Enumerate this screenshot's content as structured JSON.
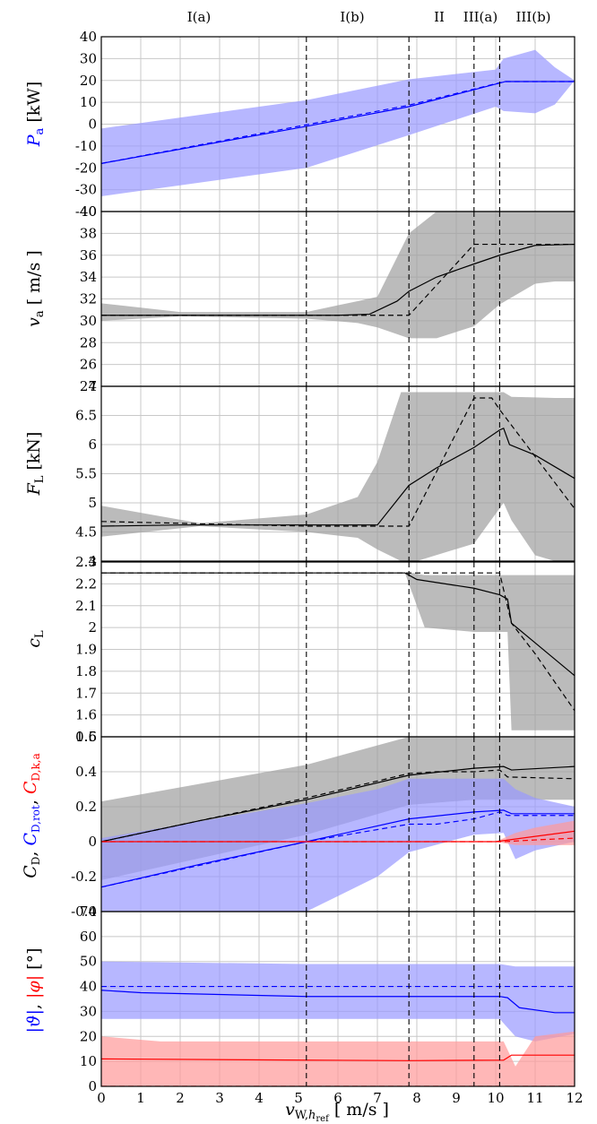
{
  "regions": [
    "I(a)",
    "I(b)",
    "II",
    "III(a)",
    "III(b)"
  ],
  "region_boundaries": [
    5.2,
    7.8,
    9.45,
    10.1
  ],
  "x_axis": {
    "ticks": [
      0,
      1,
      2,
      3,
      4,
      5,
      6,
      7,
      8,
      9,
      10,
      11,
      12
    ],
    "label": "v_{w,h_ref} [m/s]",
    "range": [
      0,
      12
    ]
  },
  "colors": {
    "black_band": "#9e9e9e",
    "blue": "#0000ff",
    "blue_band": "#9999ff",
    "red": "#ff0000",
    "red_band": "#ff9999",
    "grid": "#c8c8c8"
  },
  "chart_data": [
    {
      "type": "line",
      "ylabel": "P_a [kW]",
      "ylim": [
        -40,
        40
      ],
      "yticks": [
        -40,
        -30,
        -20,
        -10,
        0,
        10,
        20,
        30,
        40
      ],
      "series": [
        {
          "color": "blue",
          "style": "solid",
          "x": [
            0,
            5.2,
            7.8,
            10.25,
            12
          ],
          "y": [
            -18,
            -1,
            8,
            19.5,
            19.5
          ]
        },
        {
          "color": "blue",
          "style": "dashed",
          "x": [
            0,
            5.2,
            7.8,
            10.0,
            10.25,
            12
          ],
          "y": [
            -18,
            -0.3,
            8.7,
            18.5,
            19.5,
            19.5
          ]
        }
      ],
      "bands": [
        {
          "color": "blue_band",
          "x": [
            0,
            5.2,
            7.8,
            10.0,
            10.2,
            11.0,
            11.5,
            12
          ],
          "upper": [
            -2,
            11,
            20.5,
            25,
            30,
            34,
            26,
            20
          ],
          "lower": [
            -33,
            -20,
            -5,
            8,
            6,
            5,
            9,
            20
          ]
        }
      ]
    },
    {
      "type": "line",
      "ylabel": "v_a [m/s]",
      "ylim": [
        24,
        40
      ],
      "yticks": [
        24,
        26,
        28,
        30,
        32,
        34,
        36,
        38,
        40
      ],
      "series": [
        {
          "color": "black",
          "style": "solid",
          "x": [
            0,
            2,
            5.2,
            6,
            6.8,
            7.5,
            7.8,
            8.5,
            9.45,
            10.1,
            11,
            12
          ],
          "y": [
            30.5,
            30.5,
            30.5,
            30.5,
            30.6,
            31.8,
            32.7,
            34,
            35.2,
            36,
            36.9,
            37
          ]
        },
        {
          "color": "black",
          "style": "dashed",
          "x": [
            0,
            5.2,
            7.8,
            9.45,
            10.1,
            12
          ],
          "y": [
            30.5,
            30.5,
            30.5,
            37,
            37,
            37
          ]
        }
      ],
      "bands": [
        {
          "color": "black_band",
          "x": [
            0,
            2,
            5.2,
            6.5,
            7.0,
            7.8,
            8.5,
            9.45,
            10.1,
            11,
            11.5,
            12
          ],
          "upper": [
            31.6,
            30.8,
            30.8,
            31.8,
            32.2,
            38,
            40,
            40,
            40,
            40,
            40,
            40
          ],
          "lower": [
            30,
            30.4,
            30.2,
            29.8,
            29.4,
            28.4,
            28.4,
            29.5,
            31.5,
            33.4,
            33.6,
            33.6
          ]
        }
      ]
    },
    {
      "type": "line",
      "ylabel": "F_L [kN]",
      "ylim": [
        4,
        7
      ],
      "yticks": [
        4,
        4.5,
        5,
        5.5,
        6,
        6.5,
        7
      ],
      "series": [
        {
          "color": "black",
          "style": "solid",
          "x": [
            0,
            2,
            5.2,
            6.5,
            7.0,
            7.8,
            8.5,
            9.45,
            10.1,
            10.2,
            10.35,
            11,
            12
          ],
          "y": [
            4.6,
            4.62,
            4.62,
            4.62,
            4.62,
            5.3,
            5.6,
            5.95,
            6.25,
            6.28,
            6.0,
            5.82,
            5.42
          ]
        },
        {
          "color": "black",
          "style": "dashed",
          "x": [
            0,
            5.2,
            7.8,
            9.45,
            9.9,
            10.1,
            12
          ],
          "y": [
            4.68,
            4.6,
            4.6,
            6.8,
            6.8,
            6.6,
            4.9
          ]
        }
      ],
      "bands": [
        {
          "color": "black_band",
          "x": [
            0,
            2.5,
            5.2,
            6.5,
            7.0,
            7.6,
            8.0,
            9.45,
            10.2,
            10.4,
            11.0,
            11.5,
            12
          ],
          "upper": [
            4.95,
            4.65,
            4.8,
            5.1,
            5.7,
            6.9,
            6.9,
            6.9,
            6.9,
            6.82,
            6.81,
            6.8,
            6.8
          ],
          "lower": [
            4.42,
            4.6,
            4.5,
            4.4,
            4.2,
            4.0,
            4.0,
            4.3,
            5.0,
            4.7,
            4.1,
            4.0,
            4.0
          ]
        }
      ]
    },
    {
      "type": "line",
      "ylabel": "c_L",
      "ylim": [
        1.5,
        2.3
      ],
      "yticks": [
        1.5,
        1.6,
        1.7,
        1.8,
        1.9,
        2,
        2.1,
        2.2,
        2.3
      ],
      "series": [
        {
          "color": "black",
          "style": "solid",
          "x": [
            0,
            7.7,
            8.0,
            9.45,
            10.1,
            10.3,
            10.4,
            11,
            12
          ],
          "y": [
            2.25,
            2.25,
            2.22,
            2.18,
            2.15,
            2.13,
            2.02,
            1.93,
            1.78
          ]
        },
        {
          "color": "black",
          "style": "dashed",
          "x": [
            0,
            10.1,
            10.4,
            11,
            12
          ],
          "y": [
            2.25,
            2.25,
            2.02,
            1.88,
            1.62
          ]
        }
      ],
      "bands": [
        {
          "color": "black_band",
          "x": [
            0,
            7.7,
            7.9,
            8.2,
            9.45,
            10.3,
            10.4,
            10.5,
            11,
            12
          ],
          "upper": [
            2.25,
            2.25,
            2.25,
            2.24,
            2.24,
            2.24,
            2.24,
            2.24,
            2.24,
            2.24
          ],
          "lower": [
            2.25,
            2.25,
            2.15,
            2.0,
            1.98,
            1.98,
            1.53,
            1.53,
            1.53,
            1.53
          ]
        }
      ]
    },
    {
      "type": "line",
      "ylabel": "C_D, C_D,rot, C_D,k,a",
      "ylim": [
        -0.4,
        0.6
      ],
      "yticks": [
        -0.4,
        -0.2,
        0,
        0.2,
        0.4,
        0.6
      ],
      "series": [
        {
          "color": "black",
          "style": "solid",
          "x": [
            0,
            2.5,
            5.2,
            7.8,
            9.45,
            10.2,
            10.4,
            12
          ],
          "y": [
            0,
            0.12,
            0.24,
            0.38,
            0.42,
            0.43,
            0.41,
            0.43
          ]
        },
        {
          "color": "black",
          "style": "dashed",
          "x": [
            0,
            5.2,
            7.8,
            8.5,
            9.45,
            10.1,
            10.3,
            12
          ],
          "y": [
            0,
            0.25,
            0.39,
            0.4,
            0.4,
            0.41,
            0.37,
            0.36
          ]
        },
        {
          "color": "blue",
          "style": "solid",
          "x": [
            0,
            2.5,
            5.2,
            7.8,
            9.45,
            10.2,
            10.4,
            12
          ],
          "y": [
            -0.26,
            -0.13,
            0,
            0.13,
            0.17,
            0.18,
            0.16,
            0.16
          ]
        },
        {
          "color": "blue",
          "style": "dashed",
          "x": [
            0,
            5.2,
            7.8,
            8.5,
            9.45,
            10.1,
            10.3,
            12
          ],
          "y": [
            -0.26,
            0,
            0.1,
            0.1,
            0.13,
            0.17,
            0.15,
            0.15
          ]
        },
        {
          "color": "red",
          "style": "solid",
          "x": [
            0,
            10.0,
            11,
            12
          ],
          "y": [
            0,
            0,
            0.03,
            0.06
          ]
        },
        {
          "color": "red",
          "style": "dashed",
          "x": [
            0,
            10.2,
            11,
            12
          ],
          "y": [
            0,
            0,
            0.01,
            0.02
          ]
        }
      ],
      "bands": [
        {
          "color": "black_band",
          "x": [
            0,
            5.2,
            7.8,
            9.45,
            10.2,
            11,
            12
          ],
          "upper": [
            0.23,
            0.44,
            0.6,
            0.6,
            0.6,
            0.6,
            0.6
          ],
          "lower": [
            -0.22,
            0.04,
            0.21,
            0.24,
            0.24,
            0.24,
            0.24
          ]
        },
        {
          "color": "blue_band",
          "x": [
            0,
            5.2,
            7.0,
            7.8,
            9.45,
            10.2,
            10.5,
            11,
            12
          ],
          "upper": [
            0.02,
            0.22,
            0.3,
            0.36,
            0.36,
            0.36,
            0.3,
            0.25,
            0.2
          ],
          "lower": [
            -0.4,
            -0.4,
            -0.2,
            -0.06,
            0.04,
            0.05,
            -0.1,
            -0.05,
            0
          ]
        },
        {
          "color": "red_band",
          "x": [
            0,
            10.0,
            10.5,
            11,
            12
          ],
          "upper": [
            0,
            0,
            0.05,
            0.08,
            0.12
          ],
          "lower": [
            0,
            0,
            -0.02,
            -0.02,
            -0.02
          ]
        }
      ]
    },
    {
      "type": "line",
      "ylabel": "|θ|, |φ| [°]",
      "ylim": [
        0,
        70
      ],
      "yticks": [
        0,
        10,
        20,
        30,
        40,
        50,
        60,
        70
      ],
      "series": [
        {
          "color": "blue",
          "style": "solid",
          "x": [
            0,
            1,
            5.2,
            7.8,
            10.1,
            10.3,
            10.6,
            11.5,
            12
          ],
          "y": [
            38.5,
            37.5,
            36,
            36,
            36,
            35.5,
            31.5,
            29.5,
            29.5
          ]
        },
        {
          "color": "blue",
          "style": "dashed",
          "x": [
            0,
            12
          ],
          "y": [
            40,
            40
          ]
        },
        {
          "color": "red",
          "style": "solid",
          "x": [
            0,
            5.2,
            7.8,
            10.2,
            10.4,
            12
          ],
          "y": [
            11,
            10.5,
            10.3,
            10.5,
            12.5,
            12.5
          ]
        },
        {
          "color": "red",
          "style": "dashed",
          "x": [
            0,
            12
          ],
          "y": [
            0,
            0
          ]
        }
      ],
      "bands": [
        {
          "color": "blue_band",
          "x": [
            0,
            5.2,
            7.8,
            10.1,
            10.5,
            11,
            12
          ],
          "upper": [
            50,
            49,
            49,
            49,
            48,
            48,
            48
          ],
          "lower": [
            27,
            27,
            27,
            27,
            20,
            18,
            21
          ]
        },
        {
          "color": "red_band",
          "x": [
            0,
            1.5,
            5.2,
            7.8,
            10.2,
            10.5,
            11,
            12
          ],
          "upper": [
            20,
            18,
            18,
            18,
            18,
            8,
            20,
            22
          ],
          "lower": [
            0,
            0,
            0,
            0,
            0,
            0,
            0,
            0
          ]
        }
      ]
    }
  ]
}
